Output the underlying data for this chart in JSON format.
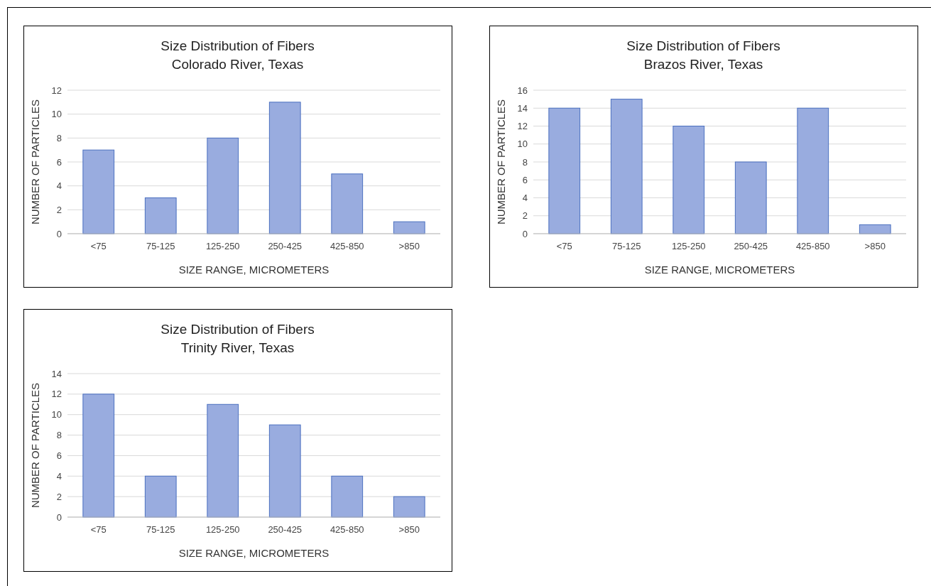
{
  "chart_data": [
    {
      "type": "bar",
      "title": "Size Distribution of Fibers",
      "subtitle": "Colorado River, Texas",
      "xlabel": "SIZE RANGE, MICROMETERS",
      "ylabel": "NUMBER OF PARTICLES",
      "categories": [
        "<75",
        "75-125",
        "125-250",
        "250-425",
        "425-850",
        ">850"
      ],
      "values": [
        7,
        3,
        8,
        11,
        5,
        1
      ],
      "color": "#99acdf",
      "ylim": [
        0,
        12
      ],
      "yticks": [
        0,
        2,
        4,
        6,
        8,
        10,
        12
      ],
      "grid": "y"
    },
    {
      "type": "bar",
      "title": "Size Distribution of Fibers",
      "subtitle": "Brazos River, Texas",
      "xlabel": "SIZE RANGE, MICROMETERS",
      "ylabel": "NUMBER OF PARTICLES",
      "categories": [
        "<75",
        "75-125",
        "125-250",
        "250-425",
        "425-850",
        ">850"
      ],
      "values": [
        14,
        15,
        12,
        8,
        14,
        1
      ],
      "color": "#99acdf",
      "ylim": [
        0,
        16
      ],
      "yticks": [
        0,
        2,
        4,
        6,
        8,
        10,
        12,
        14,
        16
      ],
      "grid": "y"
    },
    {
      "type": "bar",
      "title": "Size Distribution of Fibers",
      "subtitle": "Trinity River, Texas",
      "xlabel": "SIZE RANGE, MICROMETERS",
      "ylabel": "NUMBER OF PARTICLES",
      "categories": [
        "<75",
        "75-125",
        "125-250",
        "250-425",
        "425-850",
        ">850"
      ],
      "values": [
        12,
        4,
        11,
        9,
        4,
        2
      ],
      "color": "#99acdf",
      "ylim": [
        0,
        14
      ],
      "yticks": [
        0,
        2,
        4,
        6,
        8,
        10,
        12,
        14
      ],
      "grid": "y"
    }
  ]
}
